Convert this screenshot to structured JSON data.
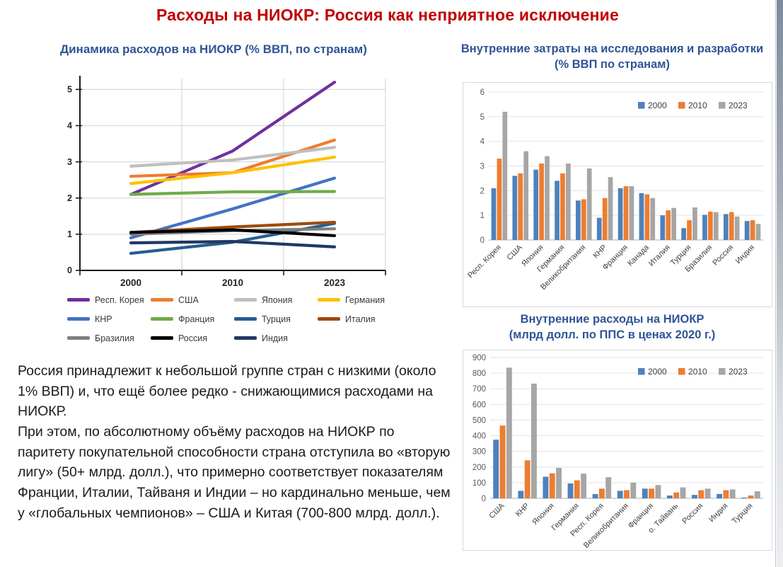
{
  "title": "Расходы на НИОКР: Россия как неприятное исключение",
  "colors": {
    "title": "#C00000",
    "chart_title": "#2F5496",
    "grid": "#D9D9D9",
    "axis_dark": "#1a1a1a",
    "bar_2000": "#4E81BD",
    "bar_2010": "#ED7D31",
    "bar_2023": "#A6A6A6"
  },
  "text": {
    "paragraphs": [
      "Россия принадлежит к небольшой группе стран с низкими (около 1% ВВП) и, что ещё более редко -  снижающимися расходами на НИОКР.",
      "При этом, по абсолютному объёму расходов на НИОКР по паритету покупательной способности страна отступила во «вторую лигу» (50+ млрд. долл.), что примерно соответствует показателям Франции, Италии, Тайваня и Индии – но кардинально меньше, чем у «глобальных чемпионов» – США и Китая (700-800 млрд. долл.)."
    ]
  },
  "chart_data": [
    {
      "type": "line",
      "title": "Динамика расходов на НИОКР (% ВВП, по странам)",
      "categories": [
        "2000",
        "2010",
        "2023"
      ],
      "ylim": [
        0,
        5.3
      ],
      "yticks": [
        0,
        1,
        2,
        3,
        4,
        5
      ],
      "grid": true,
      "legend_position": "bottom",
      "series": [
        {
          "name": "Респ. Корея",
          "color": "#7030A0",
          "values": [
            2.1,
            3.3,
            5.2
          ]
        },
        {
          "name": "США",
          "color": "#ED7D31",
          "values": [
            2.6,
            2.7,
            3.6
          ]
        },
        {
          "name": "Япония",
          "color": "#BFBFBF",
          "values": [
            2.88,
            3.05,
            3.4
          ]
        },
        {
          "name": "Германия",
          "color": "#FFC000",
          "values": [
            2.4,
            2.7,
            3.13
          ]
        },
        {
          "name": "КНР",
          "color": "#4472C4",
          "values": [
            0.9,
            1.7,
            2.55
          ]
        },
        {
          "name": "Франция",
          "color": "#70AD47",
          "values": [
            2.1,
            2.17,
            2.18
          ]
        },
        {
          "name": "Турция",
          "color": "#255E91",
          "values": [
            0.47,
            0.78,
            1.3
          ]
        },
        {
          "name": "Италия",
          "color": "#9E4B0E",
          "values": [
            1.05,
            1.2,
            1.33
          ]
        },
        {
          "name": "Бразилия",
          "color": "#7F7F7F",
          "values": [
            1.0,
            1.1,
            1.15
          ]
        },
        {
          "name": "Россия",
          "color": "#000000",
          "values": [
            1.05,
            1.12,
            0.96
          ]
        },
        {
          "name": "Индия",
          "color": "#203864",
          "values": [
            0.76,
            0.8,
            0.65
          ]
        }
      ]
    },
    {
      "type": "bar",
      "title": "Внутренние затраты на исследования и разработки (% ВВП по странам)",
      "title_lines": [
        "Внутренние затраты на исследования и разработки",
        "(% ВВП по странам)"
      ],
      "categories": [
        "Респ. Корея",
        "США",
        "Япония",
        "Германия",
        "Великобритания",
        "КНР",
        "Франция",
        "Канада",
        "Италия",
        "Турция",
        "Бразилия",
        "Россия",
        "Индия"
      ],
      "ylim": [
        0,
        6
      ],
      "ytick_step": 1,
      "grid": true,
      "legend_position": "top-right",
      "series": [
        {
          "name": "2000",
          "color": "#4E81BD",
          "values": [
            2.1,
            2.6,
            2.85,
            2.4,
            1.6,
            0.9,
            2.1,
            1.9,
            1.0,
            0.48,
            1.02,
            1.05,
            0.77
          ]
        },
        {
          "name": "2010",
          "color": "#ED7D31",
          "values": [
            3.3,
            2.7,
            3.1,
            2.7,
            1.65,
            1.7,
            2.18,
            1.85,
            1.2,
            0.8,
            1.15,
            1.13,
            0.8
          ]
        },
        {
          "name": "2023",
          "color": "#A6A6A6",
          "values": [
            5.2,
            3.6,
            3.4,
            3.1,
            2.9,
            2.55,
            2.18,
            1.7,
            1.3,
            1.32,
            1.13,
            0.95,
            0.65
          ]
        }
      ]
    },
    {
      "type": "bar",
      "title": "Внутренние расходы на НИОКР (млрд долл. по ППС в ценах 2020 г.)",
      "title_lines": [
        "Внутренние расходы на НИОКР",
        "(млрд долл. по ППС в ценах 2020 г.)"
      ],
      "categories": [
        "США",
        "КНР",
        "Япония",
        "Германия",
        "Респ. Корея",
        "Великобритания",
        "Франция",
        "о. Тайвань",
        "Россия",
        "Индия",
        "Турция"
      ],
      "ylim": [
        0,
        900
      ],
      "ytick_step": 100,
      "grid": true,
      "legend_position": "top-right",
      "series": [
        {
          "name": "2000",
          "color": "#4E81BD",
          "values": [
            375,
            48,
            138,
            95,
            27,
            48,
            62,
            18,
            22,
            28,
            5
          ]
        },
        {
          "name": "2010",
          "color": "#ED7D31",
          "values": [
            465,
            243,
            160,
            115,
            62,
            52,
            62,
            38,
            52,
            52,
            18
          ]
        },
        {
          "name": "2023",
          "color": "#A6A6A6",
          "values": [
            835,
            733,
            195,
            158,
            135,
            100,
            85,
            70,
            62,
            57,
            45
          ]
        }
      ]
    }
  ]
}
